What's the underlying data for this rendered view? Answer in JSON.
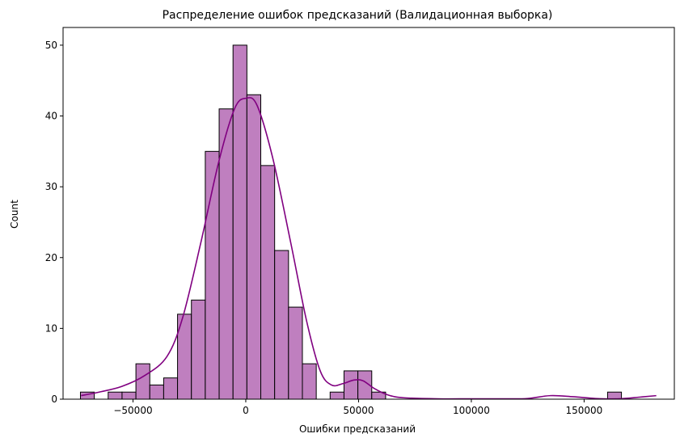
{
  "chart_data": {
    "type": "bar",
    "subtype": "histogram-with-kde",
    "title": "Распределение ошибок предсказаний (Валидационная выборка)",
    "xlabel": "Ошибки предсказаний",
    "ylabel": "Count",
    "xlim": [
      -81000,
      190000
    ],
    "ylim": [
      0,
      52.5
    ],
    "x_ticks": [
      -50000,
      0,
      50000,
      100000,
      150000
    ],
    "x_tick_labels": [
      "−50000",
      "0",
      "50000",
      "100000",
      "150000"
    ],
    "y_ticks": [
      0,
      10,
      20,
      30,
      40,
      50
    ],
    "y_tick_labels": [
      "0",
      "10",
      "20",
      "30",
      "40",
      "50"
    ],
    "bin_start": -73300,
    "bin_width": 6150,
    "counts": [
      1,
      0,
      1,
      1,
      5,
      2,
      3,
      12,
      14,
      35,
      41,
      50,
      43,
      33,
      21,
      13,
      5,
      0,
      1,
      4,
      4,
      1,
      0,
      0,
      0,
      0,
      0,
      0,
      0,
      0,
      0,
      0,
      0,
      0,
      0,
      0,
      0,
      0,
      1,
      0,
      0,
      0
    ],
    "kde_x": [
      -73000,
      -65000,
      -55000,
      -45000,
      -35000,
      -28000,
      -20000,
      -12000,
      -5000,
      0,
      5000,
      12000,
      20000,
      27000,
      33000,
      38000,
      43000,
      48000,
      52000,
      57000,
      63000,
      70000,
      85000,
      100000,
      115000,
      125000,
      135000,
      145000,
      155000,
      165000,
      175000,
      182000
    ],
    "kde_y": [
      0.5,
      1.0,
      1.8,
      3.3,
      6.0,
      11.5,
      22.0,
      33.5,
      41.0,
      42.5,
      41.5,
      34.0,
      22.0,
      11.0,
      4.0,
      2.0,
      2.2,
      2.7,
      2.6,
      1.5,
      0.6,
      0.2,
      0.05,
      0.05,
      0.05,
      0.1,
      0.5,
      0.35,
      0.1,
      0.05,
      0.3,
      0.5
    ],
    "grid": false,
    "colors": {
      "bar_fill": "#bf7fbf",
      "bar_edge": "#000000",
      "kde_line": "#800080"
    }
  }
}
